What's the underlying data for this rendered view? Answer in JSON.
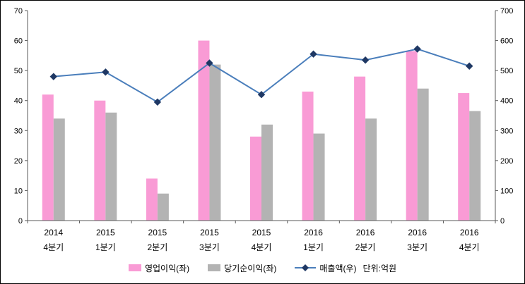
{
  "chart_data": {
    "type": "bar+line combo, dual axis",
    "categories": [
      [
        "2014",
        "4분기"
      ],
      [
        "2015",
        "1분기"
      ],
      [
        "2015",
        "2분기"
      ],
      [
        "2015",
        "3분기"
      ],
      [
        "2015",
        "4분기"
      ],
      [
        "2016",
        "1분기"
      ],
      [
        "2016",
        "2분기"
      ],
      [
        "2016",
        "3분기"
      ],
      [
        "2016",
        "4분기"
      ]
    ],
    "series": [
      {
        "name": "영업이익(좌)",
        "type": "bar",
        "axis": "left",
        "color": "#f99bd5",
        "values": [
          42,
          40,
          14,
          60,
          28,
          43,
          48,
          56.5,
          42.5
        ]
      },
      {
        "name": "당기순이익(좌)",
        "type": "bar",
        "axis": "left",
        "color": "#b3b3b3",
        "values": [
          34,
          36,
          9,
          52,
          32,
          29,
          34,
          44,
          36.5
        ]
      },
      {
        "name": "매출액(우)",
        "type": "line",
        "axis": "right",
        "color": "#4a7ebb",
        "marker": "diamond",
        "marker_color": "#1f3864",
        "values": [
          480,
          495,
          395,
          525,
          420,
          555,
          535,
          572,
          515
        ]
      }
    ],
    "left_axis": {
      "min": 0,
      "max": 70,
      "step": 10
    },
    "right_axis": {
      "min": 0,
      "max": 700,
      "step": 100
    },
    "unit_label": "단위:억원",
    "title": "",
    "grid": "off",
    "legend_position": "bottom",
    "axis_color": "#595959"
  }
}
